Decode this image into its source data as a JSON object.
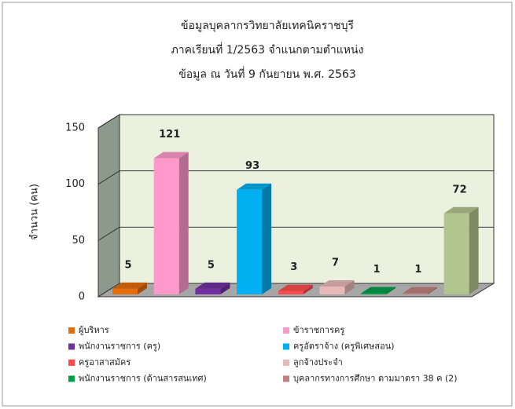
{
  "chart_data": {
    "type": "bar3d",
    "title": [
      "ข้อมูลบุคลากรวิทยาลัยเทคนิคราชบุรี",
      "ภาคเรียนที่ 1/2563 จำแนกตามตำแหน่ง",
      "ข้อมูล ณ วันที่   9  กันยายน  พ.ศ. 2563"
    ],
    "y_label": "จำนวน  (คน)",
    "ylim": [
      0,
      150
    ],
    "yticks": [
      0,
      50,
      100,
      150
    ],
    "grid": true,
    "series": [
      {
        "name": "ผู้บริหาร",
        "color": "#e46c0a",
        "values": [
          5
        ]
      },
      {
        "name": "ข้าราชการครู",
        "color": "#ff99cc",
        "values": [
          121
        ]
      },
      {
        "name": "พนักงานราชการ (ครู)",
        "color": "#7030a0",
        "values": [
          5
        ]
      },
      {
        "name": "ครูอัตราจ้าง (ครูพิเศษสอน)",
        "color": "#00b0f0",
        "values": [
          93
        ]
      },
      {
        "name": "ครูอาสาสมัคร",
        "color": "#ff4b4b",
        "values": [
          3
        ]
      },
      {
        "name": "ลูกจ้างประจำ",
        "color": "#e6b9b8",
        "values": [
          7
        ]
      },
      {
        "name": "พนักงานราชการ (ด้านสารสนเทศ)",
        "color": "#00a04b",
        "values": [
          1
        ]
      },
      {
        "name": "บุคลากรทางการศึกษา ตามมาตรา 38 ค (2)",
        "color": "#c0807f",
        "values": [
          1
        ]
      },
      {
        "name": null,
        "color": "#b3c58f",
        "values": [
          72
        ]
      }
    ]
  }
}
